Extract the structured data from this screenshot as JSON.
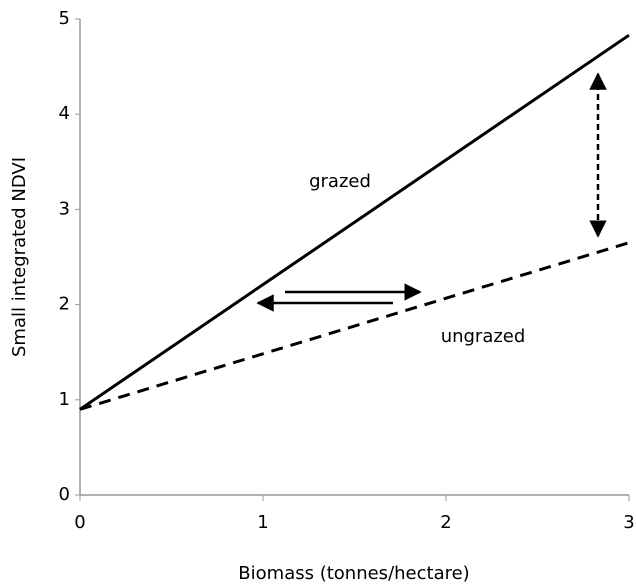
{
  "chart_data": {
    "type": "line",
    "x_label": "Biomass (tonnes/hectare)",
    "y_label": "Small integrated NDVI",
    "x": [
      0,
      3
    ],
    "series": [
      {
        "name": "grazed",
        "color": "#000000",
        "dashed": false,
        "values": [
          0.9,
          4.83
        ]
      },
      {
        "name": "ungrazed",
        "color": "#000000",
        "dashed": true,
        "values": [
          0.9,
          2.65
        ]
      }
    ],
    "xlim": [
      0,
      3
    ],
    "xticks": [
      0,
      1,
      2,
      3
    ],
    "ylim": [
      0,
      5
    ],
    "yticks": [
      0,
      1,
      2,
      3,
      4,
      5
    ],
    "grid": false,
    "legend": false
  }
}
